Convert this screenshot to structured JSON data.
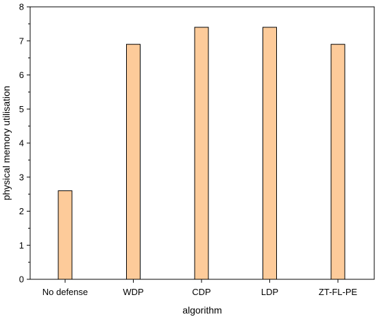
{
  "chart_data": {
    "type": "bar",
    "categories": [
      "No defense",
      "WDP",
      "CDP",
      "LDP",
      "ZT-FL-PE"
    ],
    "values": [
      2.6,
      6.9,
      7.4,
      7.4,
      6.9
    ],
    "xlabel": "algorithm",
    "ylabel": "physical memory utilisation",
    "ylim": [
      0,
      8
    ],
    "yticks": [
      0,
      1,
      2,
      3,
      4,
      5,
      6,
      7,
      8
    ],
    "grid": false,
    "legend": "none",
    "colors": {
      "bar_fill": "#fdcb9a",
      "bar_stroke": "#000000"
    }
  }
}
